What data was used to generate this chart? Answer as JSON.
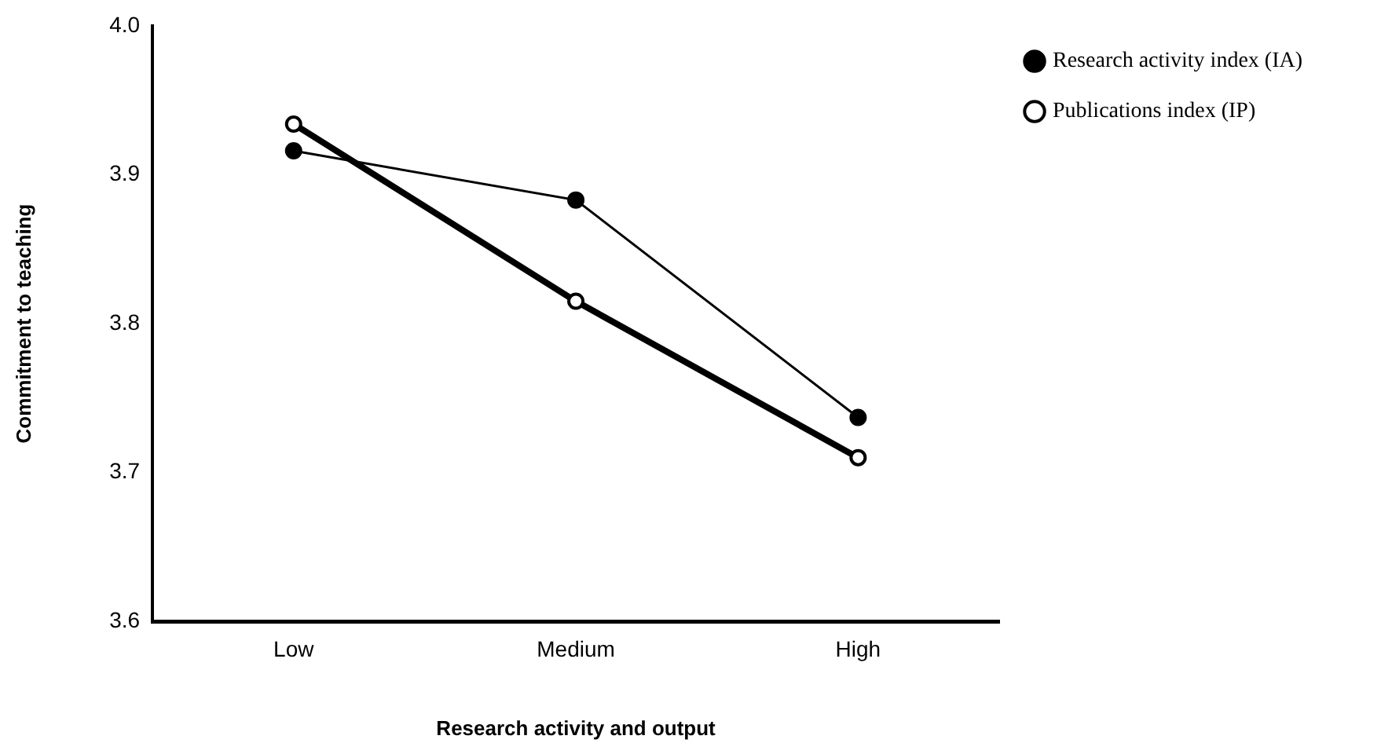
{
  "chart_data": {
    "type": "line",
    "xlabel": "Research activity and output",
    "ylabel": "Commitment to teaching",
    "categories": [
      "Low",
      "Medium",
      "High"
    ],
    "series": [
      {
        "name": "Research activity index (IA)",
        "color": "#000000",
        "values": [
          3.916,
          3.883,
          3.737
        ]
      },
      {
        "name": "Publications index (IP)",
        "color": "#000000",
        "values": [
          3.934,
          3.815,
          3.71
        ]
      }
    ],
    "ylim": [
      3.6,
      4.0
    ],
    "yticks": [
      3.6,
      3.7,
      3.8,
      3.9,
      {
        "value": 4.0,
        "label": "4.0"
      }
    ],
    "grid": false,
    "legend": "top right",
    "marker": "circle",
    "line_style": "solid"
  }
}
